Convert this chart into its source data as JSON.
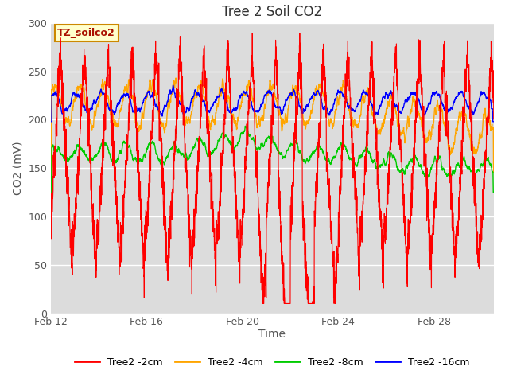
{
  "title": "Tree 2 Soil CO2",
  "xlabel": "Time",
  "ylabel": "CO2 (mV)",
  "annotation": "TZ_soilco2",
  "ylim": [
    0,
    300
  ],
  "xlim_days": [
    0,
    18.5
  ],
  "x_ticks_labels": [
    "Feb 12",
    "Feb 16",
    "Feb 20",
    "Feb 24",
    "Feb 28"
  ],
  "x_ticks_positions": [
    0,
    4,
    8,
    12,
    16
  ],
  "plot_bg_color": "#dcdcdc",
  "colors": {
    "2cm": "#ff0000",
    "4cm": "#ffa500",
    "8cm": "#00cc00",
    "16cm": "#0000ff"
  },
  "legend_labels": [
    "Tree2 -2cm",
    "Tree2 -4cm",
    "Tree2 -8cm",
    "Tree2 -16cm"
  ],
  "title_fontsize": 12,
  "label_fontsize": 10,
  "tick_fontsize": 9
}
